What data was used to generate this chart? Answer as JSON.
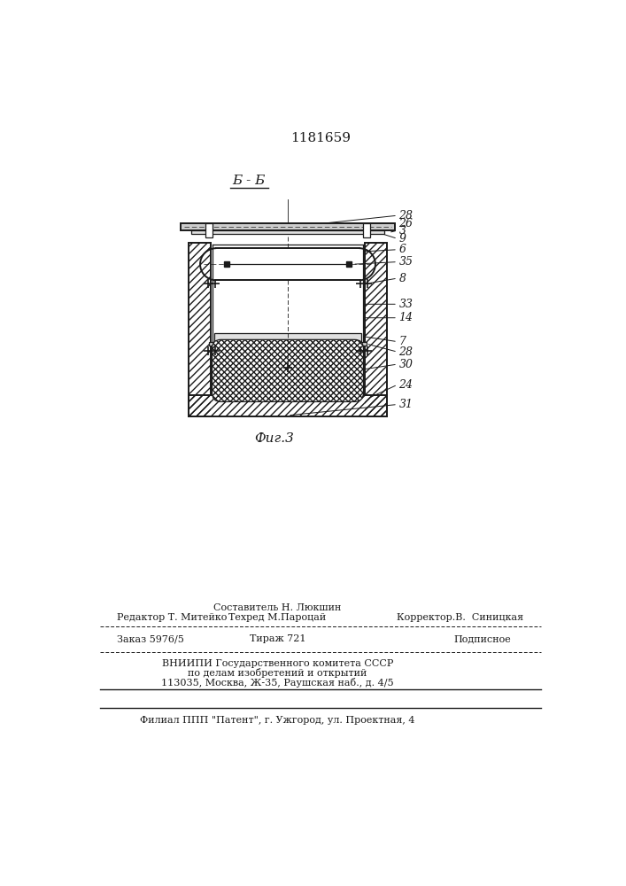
{
  "patent_number": "1181659",
  "section_label": "Б - Б",
  "fig_label": "Фиг.3",
  "bg_color": "#ffffff",
  "drawing_color": "#1a1a1a",
  "footer_line1_left": "Редактор Т. Митейко",
  "footer_line1_center_top": "Составитель Н. Люкшин",
  "footer_line1_center_bot": "Техред М.Пароцай",
  "footer_line1_right": "Корректор.В.  Синицкая",
  "footer_line2_col1": "Заказ 5976/5",
  "footer_line2_col2": "Тираж 721",
  "footer_line2_col3": "Подписное",
  "footer_line3": "ВНИИПИ Государственного комитета СССР",
  "footer_line4": "по делам изобретений и открытий",
  "footer_line5": "113035, Москва, Ж-35, Раушская наб., д. 4/5",
  "footer_line6": "Филиал ППП \"Патент\", г. Ужгород, ул. Проектная, 4"
}
